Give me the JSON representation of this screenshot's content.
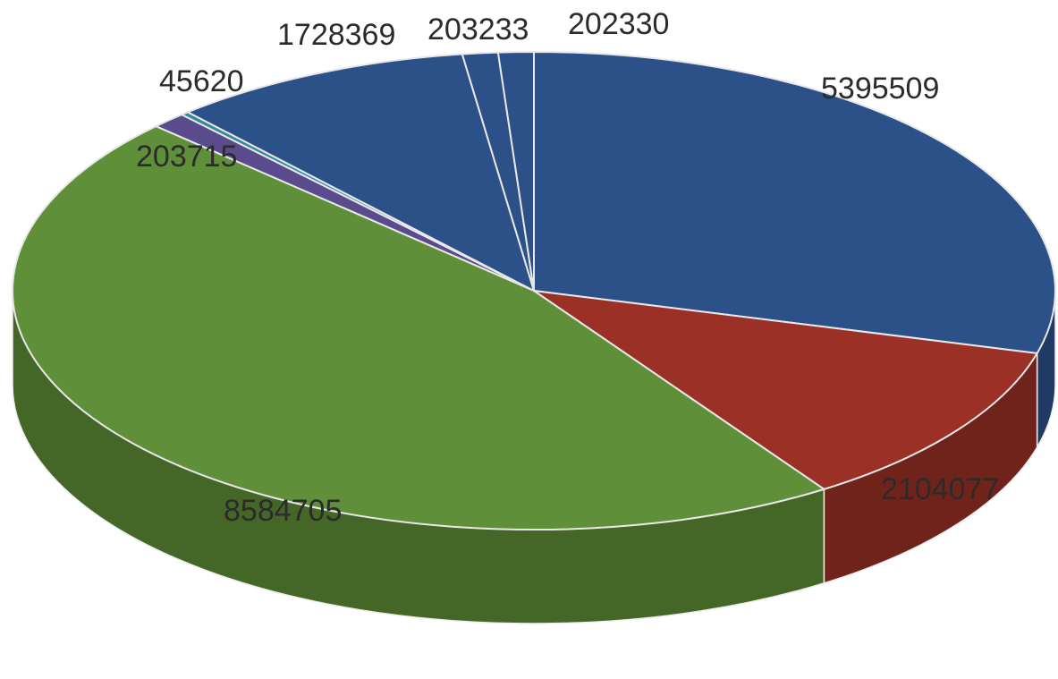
{
  "chart_data": {
    "type": "pie",
    "style": "3d",
    "title": "",
    "slices": [
      {
        "value": 5395509,
        "label": "5395509",
        "color": "#2c5189"
      },
      {
        "value": 2104077,
        "label": "2104077",
        "color": "#9b3026"
      },
      {
        "value": 8584705,
        "label": "8584705",
        "color": "#5f8f38"
      },
      {
        "value": 203715,
        "label": "203715",
        "color": "#5a4b8c"
      },
      {
        "value": 45620,
        "label": "45620",
        "color": "#2f8aa0"
      },
      {
        "value": 1728369,
        "label": "1728369",
        "color": "#2c5189"
      },
      {
        "value": 203233,
        "label": "203233",
        "color": "#2c5189"
      },
      {
        "value": 202330,
        "label": "202330",
        "color": "#2c5189"
      }
    ],
    "legend": "none"
  }
}
